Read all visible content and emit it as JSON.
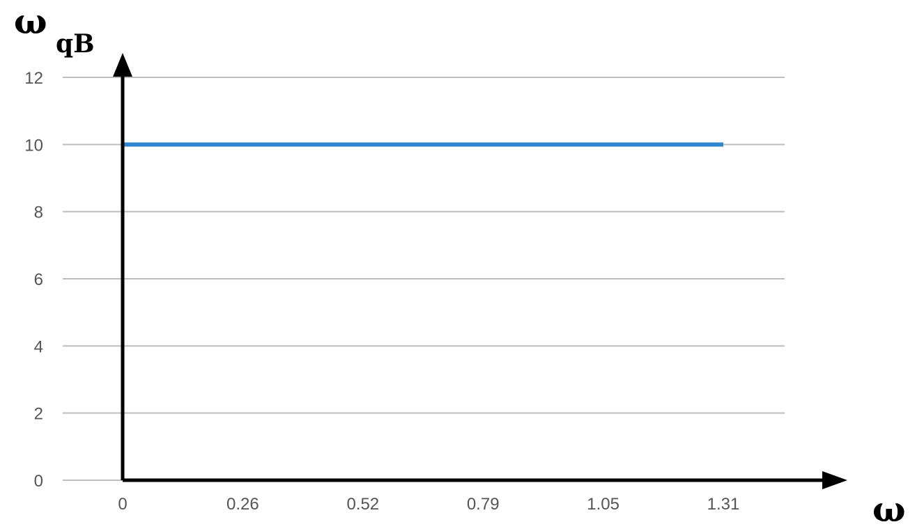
{
  "chart_data": {
    "type": "line",
    "x_tick_labels": [
      "0",
      "0.26",
      "0.52",
      "0.79",
      "1.05",
      "1.31"
    ],
    "x": [
      0,
      0.26,
      0.52,
      0.79,
      1.05,
      1.31
    ],
    "series": [
      {
        "values": [
          10,
          10,
          10,
          10,
          10,
          10
        ],
        "color": "#2f86cf"
      }
    ],
    "ylim": [
      0,
      12
    ],
    "y_ticks": [
      0,
      2,
      4,
      6,
      8,
      10,
      12
    ],
    "grid": true,
    "legend": "none",
    "ylabel_main": "ω",
    "ylabel_sub": "qB",
    "xlabel": "ω"
  }
}
